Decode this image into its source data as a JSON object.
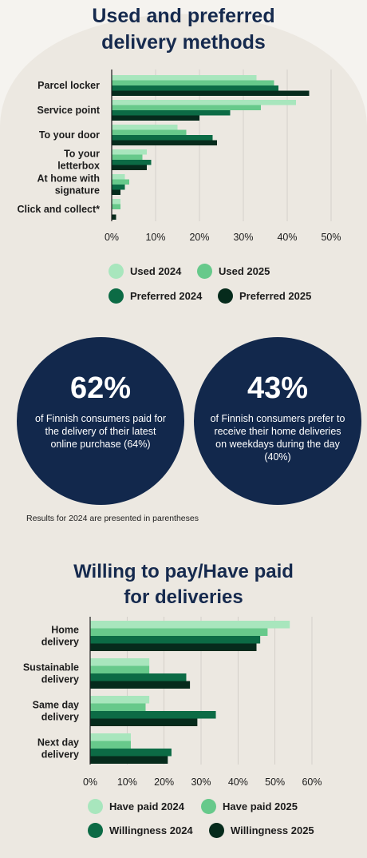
{
  "colors": {
    "used2024": "#a8e6bd",
    "used2025": "#67c98b",
    "pref2024": "#0c6b45",
    "pref2025": "#062b1c",
    "navy": "#12284c",
    "background": "#f5f3ef",
    "arch": "#ece8e1"
  },
  "chart1": {
    "title_line1": "Used and preferred",
    "title_line2": "delivery methods",
    "legend": [
      "Used 2024",
      "Used 2025",
      "Preferred 2024",
      "Preferred 2025"
    ]
  },
  "stats": [
    {
      "value": "62%",
      "text": "of Finnish consumers paid for the delivery of their latest online purchase (64%)"
    },
    {
      "value": "43%",
      "text": "of Finnish consumers prefer to receive their home deliveries on weekdays during the day (40%)"
    }
  ],
  "note": "Results for 2024 are presented in parentheses",
  "chart2": {
    "title_line1": "Willing to pay/Have paid",
    "title_line2": "for deliveries",
    "legend": [
      "Have paid 2024",
      "Have paid 2025",
      "Willingness 2024",
      "Willingness 2025"
    ]
  },
  "chart_data": [
    {
      "type": "bar",
      "orientation": "horizontal",
      "title": "Used and preferred delivery methods",
      "categories": [
        [
          "Parcel locker"
        ],
        [
          "Service point"
        ],
        [
          "To your door"
        ],
        [
          "To your",
          "letterbox"
        ],
        [
          "At home with",
          "signature"
        ],
        [
          "Click and collect*"
        ]
      ],
      "series": [
        {
          "name": "Used 2024",
          "values": [
            33,
            42,
            15,
            8,
            3,
            2
          ]
        },
        {
          "name": "Used 2025",
          "values": [
            37,
            34,
            17,
            7,
            4,
            2
          ]
        },
        {
          "name": "Preferred 2024",
          "values": [
            38,
            27,
            23,
            9,
            3,
            0
          ]
        },
        {
          "name": "Preferred 2025",
          "values": [
            45,
            20,
            24,
            8,
            2,
            1
          ]
        }
      ],
      "xlim": [
        0,
        50
      ],
      "ticks": [
        "0%",
        "10%",
        "20%",
        "30%",
        "40%",
        "50%"
      ]
    },
    {
      "type": "bar",
      "orientation": "horizontal",
      "title": "Willing to pay/Have paid for deliveries",
      "categories": [
        [
          "Home",
          "delivery"
        ],
        [
          "Sustainable",
          "delivery"
        ],
        [
          "Same day",
          "delivery"
        ],
        [
          "Next day",
          "delivery"
        ]
      ],
      "series": [
        {
          "name": "Have paid 2024",
          "values": [
            54,
            16,
            16,
            11
          ]
        },
        {
          "name": "Have paid 2025",
          "values": [
            48,
            16,
            15,
            11
          ]
        },
        {
          "name": "Willingness 2024",
          "values": [
            46,
            26,
            34,
            22
          ]
        },
        {
          "name": "Willingness 2025",
          "values": [
            45,
            27,
            29,
            21
          ]
        }
      ],
      "xlim": [
        0,
        60
      ],
      "ticks": [
        "0%",
        "10%",
        "20%",
        "30%",
        "40%",
        "50%",
        "60%"
      ]
    }
  ]
}
